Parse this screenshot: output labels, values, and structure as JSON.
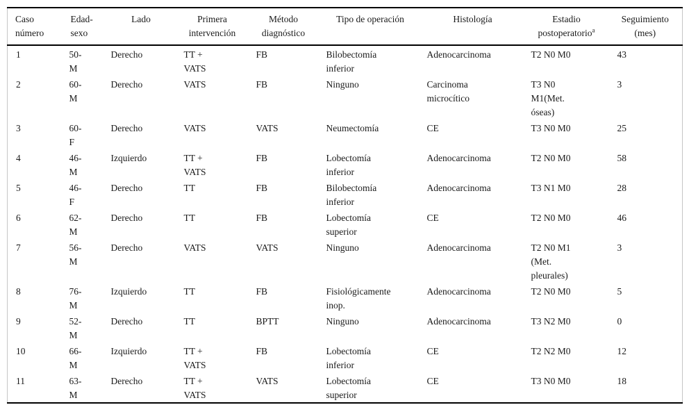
{
  "table": {
    "columns": [
      {
        "id": "caso-numero",
        "label_lines": [
          "Caso",
          "número"
        ]
      },
      {
        "id": "edad-sexo",
        "label_lines": [
          "Edad-",
          "sexo"
        ]
      },
      {
        "id": "lado",
        "label_lines": [
          "Lado"
        ]
      },
      {
        "id": "primera-intervencion",
        "label_lines": [
          "Primera",
          "intervención"
        ]
      },
      {
        "id": "metodo-diagnostico",
        "label_lines": [
          "Método",
          "diagnóstico"
        ]
      },
      {
        "id": "tipo-de-operacion",
        "label_lines": [
          "Tipo de operación"
        ]
      },
      {
        "id": "histologia",
        "label_lines": [
          "Histología"
        ]
      },
      {
        "id": "estadio-postoperatorio",
        "label_lines": [
          "Estadio",
          "postoperatorio"
        ],
        "superscript": "a"
      },
      {
        "id": "seguimiento-mes",
        "label_lines": [
          "Seguimiento",
          "(mes)"
        ]
      }
    ],
    "rows": [
      [
        "1",
        [
          "50-",
          "M"
        ],
        "Derecho",
        [
          "TT +",
          "VATS"
        ],
        "FB",
        [
          "Bilobectomía",
          "inferior"
        ],
        "Adenocarcinoma",
        "T2 N0 M0",
        "43"
      ],
      [
        "2",
        [
          "60-",
          "M"
        ],
        "Derecho",
        "VATS",
        "FB",
        "Ninguno",
        [
          "Carcinoma",
          "microcítico"
        ],
        [
          "T3 N0",
          "M1(Met.",
          "óseas)"
        ],
        "3"
      ],
      [
        "3",
        [
          "60-",
          "F"
        ],
        "Derecho",
        "VATS",
        "VATS",
        "Neumectomía",
        "CE",
        "T3 N0 M0",
        "25"
      ],
      [
        "4",
        [
          "46-",
          "M"
        ],
        "Izquierdo",
        [
          "TT +",
          "VATS"
        ],
        "FB",
        [
          "Lobectomía",
          "inferior"
        ],
        "Adenocarcinoma",
        "T2 N0 M0",
        "58"
      ],
      [
        "5",
        [
          "46-",
          "F"
        ],
        "Derecho",
        "TT",
        "FB",
        [
          "Bilobectomía",
          "inferior"
        ],
        "Adenocarcinoma",
        "T3 N1 M0",
        "28"
      ],
      [
        "6",
        [
          "62-",
          "M"
        ],
        "Derecho",
        "TT",
        "FB",
        [
          "Lobectomía",
          "superior"
        ],
        "CE",
        "T2 N0 M0",
        "46"
      ],
      [
        "7",
        [
          "56-",
          "M"
        ],
        "Derecho",
        "VATS",
        "VATS",
        "Ninguno",
        "Adenocarcinoma",
        [
          "T2 N0 M1",
          "(Met.",
          "pleurales)"
        ],
        "3"
      ],
      [
        "8",
        [
          "76-",
          "M"
        ],
        "Izquierdo",
        "TT",
        "FB",
        [
          "Fisiológicamente",
          "inop."
        ],
        "Adenocarcinoma",
        "T2 N0 M0",
        "5"
      ],
      [
        "9",
        [
          "52-",
          "M"
        ],
        "Derecho",
        "TT",
        "BPTT",
        "Ninguno",
        "Adenocarcinoma",
        "T3 N2 M0",
        "0"
      ],
      [
        "10",
        [
          "66-",
          "M"
        ],
        "Izquierdo",
        [
          "TT +",
          "VATS"
        ],
        "FB",
        [
          "Lobectomía",
          "inferior"
        ],
        "CE",
        "T2 N2 M0",
        "12"
      ],
      [
        "11",
        [
          "63-",
          "M"
        ],
        "Derecho",
        [
          "TT +",
          "VATS"
        ],
        "VATS",
        [
          "Lobectomía",
          "superior"
        ],
        "CE",
        "T3 N0 M0",
        "18"
      ]
    ]
  },
  "colors": {
    "text": "#1a1a1a",
    "rule": "#000000",
    "side_border": "#c6c6c6",
    "background": "#ffffff"
  }
}
